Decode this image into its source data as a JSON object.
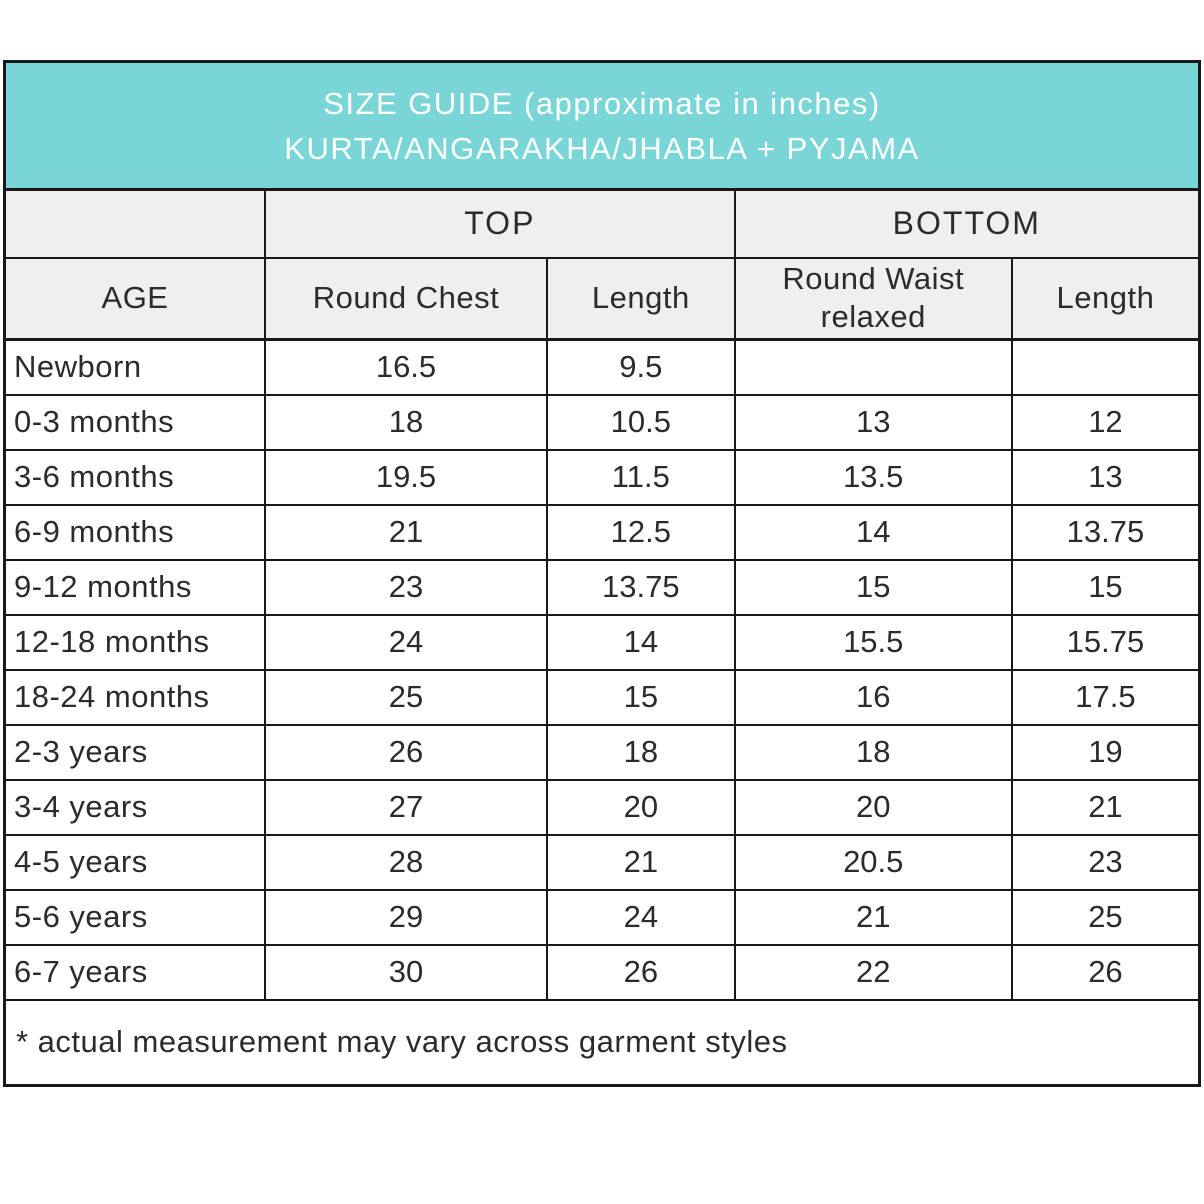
{
  "header": {
    "title_line1": "SIZE GUIDE (approximate in inches)",
    "title_line2": "KURTA/ANGARAKHA/JHABLA + PYJAMA",
    "bg_color": "#7AD5D6",
    "text_color": "#ffffff"
  },
  "table": {
    "group_headers": {
      "top": "TOP",
      "bottom": "BOTTOM"
    },
    "column_headers": [
      "AGE",
      "Round Chest",
      "Length",
      "Round Waist relaxed",
      "Length"
    ],
    "rows": [
      [
        "Newborn",
        "16.5",
        "9.5",
        "",
        ""
      ],
      [
        "0-3 months",
        "18",
        "10.5",
        "13",
        "12"
      ],
      [
        "3-6 months",
        "19.5",
        "11.5",
        "13.5",
        "13"
      ],
      [
        "6-9 months",
        "21",
        "12.5",
        "14",
        "13.75"
      ],
      [
        "9-12 months",
        "23",
        "13.75",
        "15",
        "15"
      ],
      [
        "12-18 months",
        "24",
        "14",
        "15.5",
        "15.75"
      ],
      [
        "18-24 months",
        "25",
        "15",
        "16",
        "17.5"
      ],
      [
        "2-3 years",
        "26",
        "18",
        "18",
        "19"
      ],
      [
        "3-4 years",
        "27",
        "20",
        "20",
        "21"
      ],
      [
        "4-5 years",
        "28",
        "21",
        "20.5",
        "23"
      ],
      [
        "5-6 years",
        "29",
        "24",
        "21",
        "25"
      ],
      [
        "6-7 years",
        "30",
        "26",
        "22",
        "26"
      ]
    ],
    "footnote": "* actual measurement may vary across garment styles"
  },
  "colors": {
    "border": "#191919",
    "header_bg": "#efefef",
    "row_bg": "#ffffff"
  }
}
